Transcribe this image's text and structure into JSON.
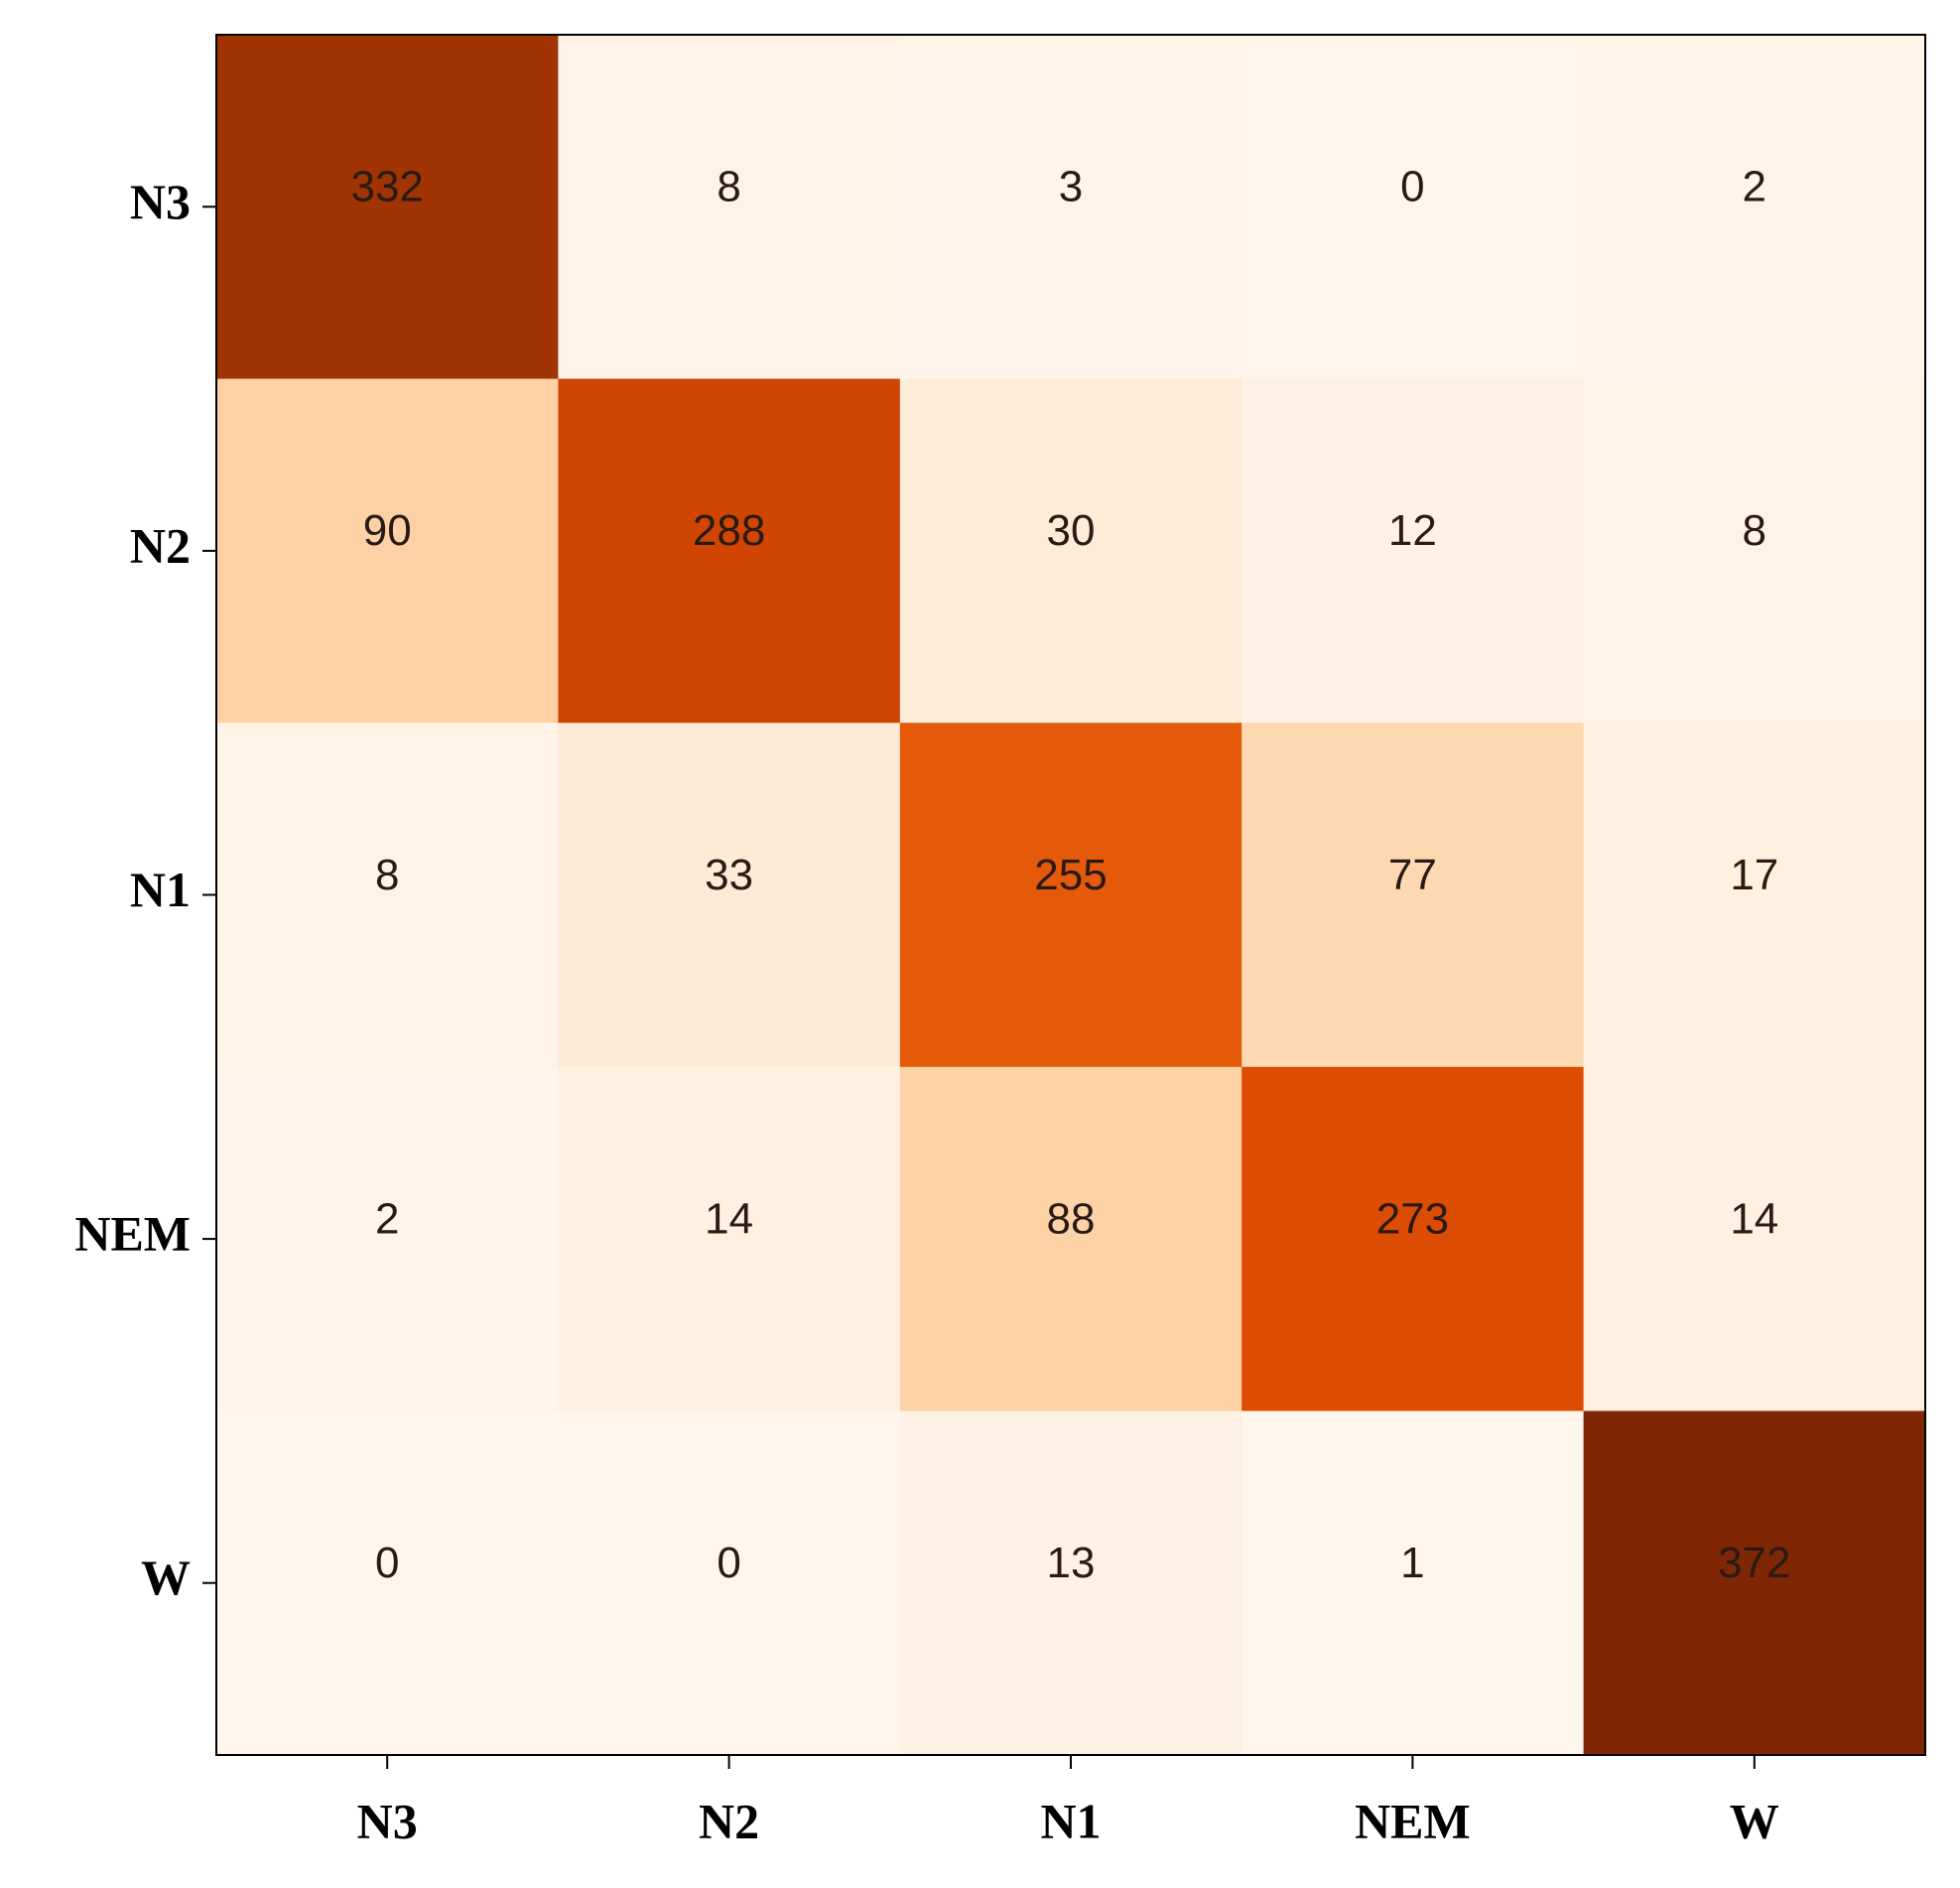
{
  "chart_data": {
    "type": "heatmap",
    "x_categories": [
      "N3",
      "N2",
      "N1",
      "NEM",
      "W"
    ],
    "y_categories": [
      "N3",
      "N2",
      "N1",
      "NEM",
      "W"
    ],
    "values": [
      [
        332,
        8,
        3,
        0,
        2
      ],
      [
        90,
        288,
        30,
        12,
        8
      ],
      [
        8,
        33,
        255,
        77,
        17
      ],
      [
        2,
        14,
        88,
        273,
        14
      ],
      [
        0,
        0,
        13,
        1,
        372
      ]
    ],
    "colormap": [
      "#fff5eb",
      "#fee6ce",
      "#fdd0a2",
      "#fdae6b",
      "#fd8d3c",
      "#f16913",
      "#d94801",
      "#a63603",
      "#7f2704"
    ]
  }
}
